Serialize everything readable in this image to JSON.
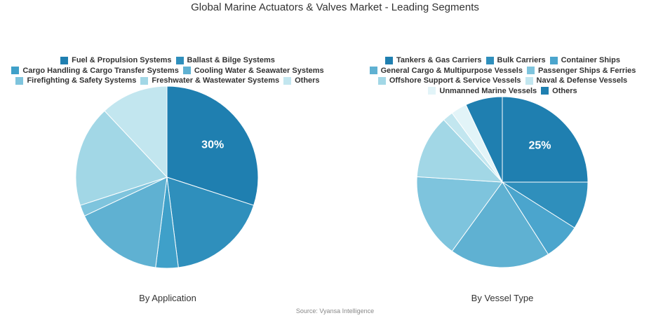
{
  "title": "Global Marine Actuators & Valves Market - Leading Segments",
  "source": "Source: Vyansa Intelligence",
  "chart_data": [
    {
      "type": "pie",
      "title": "By Application",
      "categories": [
        "Fuel & Propulsion Systems",
        "Ballast & Bilge Systems",
        "Cargo Handling & Cargo Transfer Systems",
        "Cooling Water & Seawater Systems",
        "Firefighting & Safety Systems",
        "Freshwater & Wastewater Systems",
        "Others"
      ],
      "values": [
        30,
        18,
        4,
        16,
        2,
        18,
        12
      ],
      "colors": [
        "#1f7fb0",
        "#2f8fbc",
        "#3fa0c9",
        "#5fb1d2",
        "#7ec4dd",
        "#a2d7e6",
        "#c2e6ef"
      ],
      "data_labels": [
        "30%",
        "",
        "",
        "",
        "",
        "",
        ""
      ]
    },
    {
      "type": "pie",
      "title": "By Vessel Type",
      "categories": [
        "Tankers & Gas Carriers",
        "Bulk Carriers",
        "Container Ships",
        "General Cargo & Multipurpose Vessels",
        "Passenger Ships & Ferries",
        "Offshore Support & Service Vessels",
        "Naval & Defense Vessels",
        "Unmanned Marine Vessels",
        "Others"
      ],
      "values": [
        25,
        9,
        7,
        19,
        16,
        12,
        2,
        3,
        7
      ],
      "colors": [
        "#1f7fb0",
        "#2f8fbc",
        "#4ba5cd",
        "#5fb1d2",
        "#7ec4dd",
        "#a2d7e6",
        "#c2e6ef",
        "#e2f4f8",
        "#1f7fb0"
      ],
      "data_labels": [
        "25%",
        "",
        "",
        "",
        "",
        "",
        "",
        "",
        ""
      ]
    }
  ]
}
